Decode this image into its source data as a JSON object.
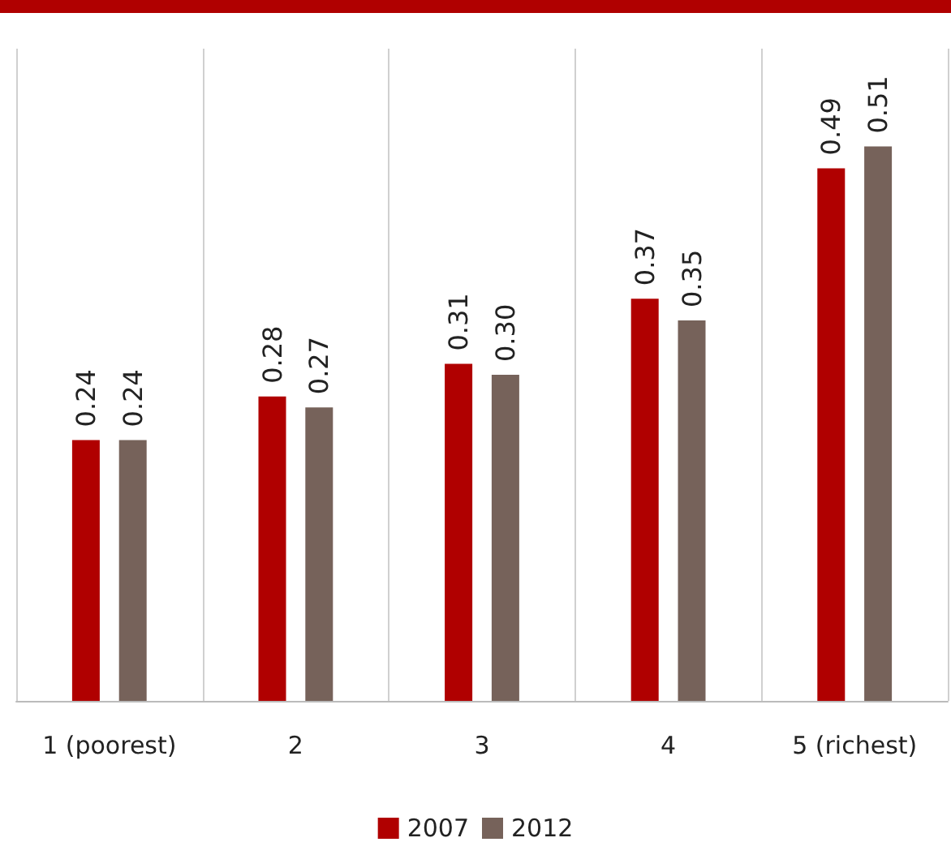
{
  "chart_data": {
    "type": "bar",
    "categories": [
      "1 (poorest)",
      "2",
      "3",
      "4",
      "5 (richest)"
    ],
    "series": [
      {
        "name": "2007",
        "color": "#b00000",
        "values": [
          0.24,
          0.28,
          0.31,
          0.37,
          0.49
        ],
        "value_labels": [
          "0.24",
          "0.28",
          "0.31",
          "0.37",
          "0.49"
        ]
      },
      {
        "name": "2012",
        "color": "#76625a",
        "values": [
          0.24,
          0.27,
          0.3,
          0.35,
          0.51
        ],
        "value_labels": [
          "0.24",
          "0.27",
          "0.30",
          "0.35",
          "0.51"
        ]
      }
    ],
    "ylim": [
      0,
      0.6
    ],
    "tick_labels": "x",
    "grid": "x",
    "legend": "bottom"
  }
}
